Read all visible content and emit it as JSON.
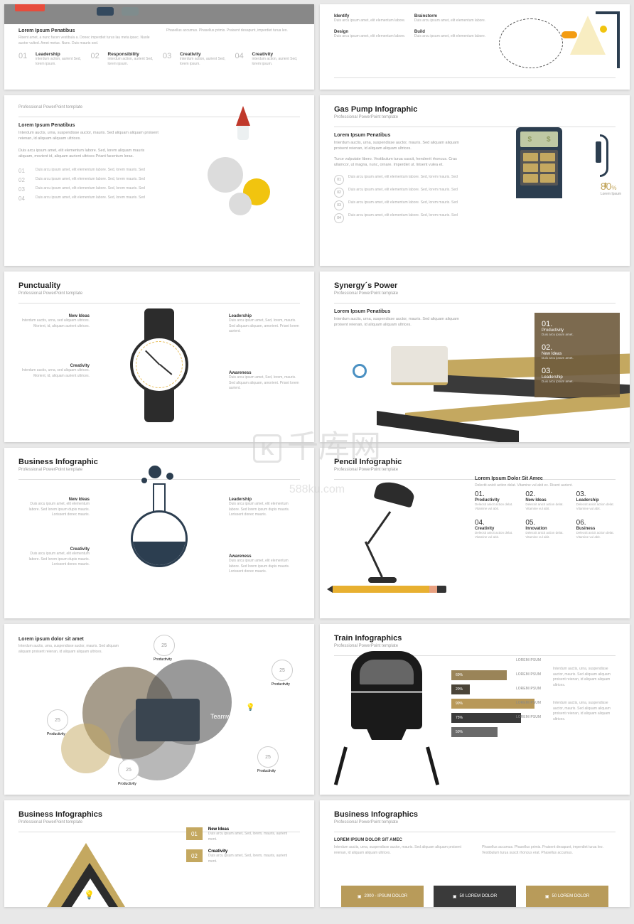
{
  "watermark": {
    "main": "千库网",
    "sub": "588ku.com"
  },
  "lorem": {
    "penatibus": "Lorem Ipsum Penatibus",
    "subtitle": "Professional PowerPoint template",
    "short": "Duis arcu ipsum amet, elit elementum labore. Sed lorem ipsum dupis mauris. Lorissent donec mauris.",
    "tiny": "Duis arcu ipsum amet, elit elementum labore. Sed, lorem mauris. Sed",
    "dolor": "Lorem ipsum dolor sit amet",
    "dolorsit": "LOREM IPSUM DOLOR SIT AMEC",
    "para": "Interdum auctis, urna, suspendisse auctor, mauris. Sed aliquam aliquam proisent reienan, id aliquam aliquam ultrices."
  },
  "s1": {
    "top": {
      "l": "Lorem Ipsum Penatibus",
      "r": "Phasellus accumus. Phasellus primis. Praisent desapunt, imperdiet turua leo."
    },
    "items": [
      {
        "n": "01",
        "t": "Leadership",
        "d": "interdum action, aurient Sed, lorem ipsum."
      },
      {
        "n": "02",
        "t": "Responsibility",
        "d": "interdum action, aurient Sed, lorem ipsum."
      },
      {
        "n": "03",
        "t": "Creativity",
        "d": "interdum action, aurient Sed, lorem ipsum."
      },
      {
        "n": "04",
        "t": "Creativity",
        "d": "interdum action, aurient Sed, lorem ipsum."
      }
    ]
  },
  "s2": {
    "items": [
      {
        "t": "Identify",
        "d": "Duis arcu ipsum amet, elit elementum labore."
      },
      {
        "t": "Brainstorm",
        "d": "Duis arcu ipsum amet, elit elementum labore."
      },
      {
        "t": "Design",
        "d": "Duis arcu ipsum amet, elit elementum labore."
      },
      {
        "t": "Build",
        "d": "Duis arcu ipsum amet, elit elementum labore."
      }
    ]
  },
  "s3": {
    "items": [
      {
        "n": "01"
      },
      {
        "n": "02"
      },
      {
        "n": "03"
      },
      {
        "n": "04"
      }
    ]
  },
  "s4": {
    "title": "Gas Pump Infographic",
    "pct": "80",
    "pct_sym": "%",
    "unit": "Lorem Ipsum",
    "items": [
      {
        "n": "01"
      },
      {
        "n": "02"
      },
      {
        "n": "03"
      },
      {
        "n": "04"
      }
    ],
    "dollar": "$"
  },
  "s5": {
    "title": "Punctuality",
    "callouts": [
      {
        "t": "New Ideas",
        "d": "Interdum auctis, urna, sed aliquam ultrices. Morient, id, aliquam aurient ultrices."
      },
      {
        "t": "Leadership",
        "d": "Duis arcu ipsum amet, Sed, lorem, mauris. Sed aliquam aliquam, amorient. Priant lorem aurient."
      },
      {
        "t": "Creativity",
        "d": "Interdum auctis, urna, sed aliquam ultrices. Morient, id, aliquam aurient ultrices."
      },
      {
        "t": "Awareness",
        "d": "Duis arcu ipsum amet, Sed, lorem, mauris. Sed aliquam aliquam, amorient. Priant lorem aurient."
      }
    ]
  },
  "s6": {
    "title": "Synergy´s Power",
    "items": [
      {
        "n": "01.",
        "t": "Productivity",
        "d": "Duis arcu ipsum amet."
      },
      {
        "n": "02.",
        "t": "New Ideas",
        "d": "Duis arcu ipsum amet."
      },
      {
        "n": "03.",
        "t": "Leadership",
        "d": "Duis arcu ipsum amet."
      }
    ]
  },
  "s7": {
    "title": "Business Infographic",
    "callouts": [
      {
        "t": "New Ideas"
      },
      {
        "t": "Leadership"
      },
      {
        "t": "Creativity"
      },
      {
        "t": "Awareness"
      }
    ]
  },
  "s8": {
    "title": "Pencil Infographic",
    "heading": "Lorem Ipsum Dolor Sit Amec",
    "items": [
      {
        "n": "01.",
        "t": "Productivity",
        "d": "Delecsit anicit action delat. Vitamine vul abit."
      },
      {
        "n": "02.",
        "t": "New Ideas",
        "d": "Delecsit anicit action delat. Vitamine vul abit."
      },
      {
        "n": "03.",
        "t": "Leadership",
        "d": "Delecsit anicit action delat. Vitamine vul abit."
      },
      {
        "n": "04.",
        "t": "Creativity",
        "d": "Delecsit anicit action delat. Vitamine vul abit."
      },
      {
        "n": "05.",
        "t": "Innovation",
        "d": "Delecsit anicit action delat. Vitamine vul abit."
      },
      {
        "n": "06.",
        "t": "Business",
        "d": "Delecsit anicit action delat. Vitamine vul abit."
      }
    ]
  },
  "s9": {
    "label": "Teamwork",
    "callouts": [
      {
        "v": "25",
        "t": "Productivity"
      },
      {
        "v": "25",
        "t": "Productivity"
      },
      {
        "v": "25",
        "t": "Productivity"
      },
      {
        "v": "25",
        "t": "Productivity"
      },
      {
        "v": "25",
        "t": "Productivity"
      }
    ]
  },
  "s10": {
    "title": "Train Infographics",
    "bars": [
      {
        "v": 60,
        "c": "#9a8458",
        "t": "LOREM IPSUM"
      },
      {
        "v": 20,
        "c": "#4a4438",
        "t": "LOREM IPSUM"
      },
      {
        "v": 90,
        "c": "#b89858",
        "t": "LOREM IPSUM"
      },
      {
        "v": 75,
        "c": "#3a3a3a",
        "t": "LOREM IPSUM"
      },
      {
        "v": 50,
        "c": "#6a6a6a",
        "t": "LOREM IPSUM"
      }
    ]
  },
  "s11": {
    "title": "Business Infographics",
    "items": [
      {
        "n": "01",
        "t": "New Ideas",
        "d": "Duis arcu ipsum amet, Sed, lorem, mauris, aurient ment."
      },
      {
        "n": "02",
        "t": "Creativity",
        "d": "Duis arcu ipsum amet, Sed, lorem, mauris, aurient ment."
      }
    ]
  },
  "s12": {
    "title": "Business Infographics",
    "boxes": [
      {
        "c": "#b89b5a",
        "t": "2000 - IPSUM DOLOR"
      },
      {
        "c": "#3a3a3a",
        "t": "50 LOREM DOLOR"
      },
      {
        "c": "#b89b5a",
        "t": "50 LOREM DOLOR"
      }
    ]
  }
}
